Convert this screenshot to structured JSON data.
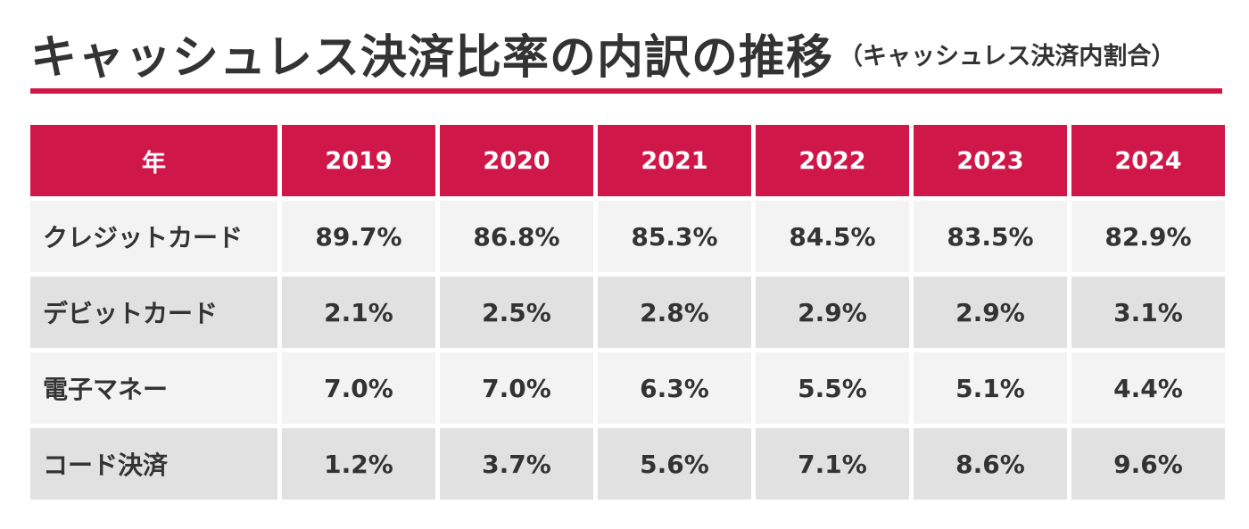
{
  "header": {
    "title": "キャッシュレス決済比率の内訳の推移",
    "subtitle": "（キャッシュレス決済内割合）"
  },
  "colors": {
    "accent": "#d0174a",
    "row_light": "#f3f3f3",
    "row_dark": "#e1e1e1",
    "text": "#333333"
  },
  "chart_data": {
    "type": "table",
    "title": "キャッシュレス決済比率の内訳の推移",
    "subtitle": "（キャッシュレス決済内割合）",
    "columns": [
      "年",
      "2019",
      "2020",
      "2021",
      "2022",
      "2023",
      "2024"
    ],
    "rows": [
      {
        "label": "クレジットカード",
        "values": [
          "89.7%",
          "86.8%",
          "85.3%",
          "84.5%",
          "83.5%",
          "82.9%"
        ]
      },
      {
        "label": "デビットカード",
        "values": [
          "2.1%",
          "2.5%",
          "2.8%",
          "2.9%",
          "2.9%",
          "3.1%"
        ]
      },
      {
        "label": "電子マネー",
        "values": [
          "7.0%",
          "7.0%",
          "6.3%",
          "5.5%",
          "5.1%",
          "4.4%"
        ]
      },
      {
        "label": "コード決済",
        "values": [
          "1.2%",
          "3.7%",
          "5.6%",
          "7.1%",
          "8.6%",
          "9.6%"
        ]
      }
    ]
  }
}
